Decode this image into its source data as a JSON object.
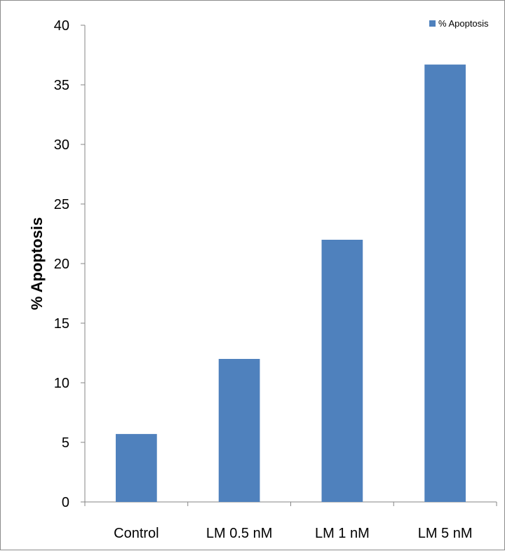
{
  "chart_data": {
    "type": "bar",
    "categories": [
      "Control",
      "LM 0.5 nM",
      "LM 1 nM",
      "LM 5 nM"
    ],
    "series": [
      {
        "name": "% Apoptosis",
        "values": [
          5.7,
          12.0,
          22.0,
          36.7
        ],
        "color": "#4f81bd"
      }
    ],
    "title": "",
    "xlabel": "",
    "ylabel": "% Apoptosis",
    "ylim": [
      0,
      40
    ],
    "yticks": [
      0,
      5,
      10,
      15,
      20,
      25,
      30,
      35,
      40
    ],
    "grid": false,
    "legend": {
      "position": "top-right",
      "entries": [
        "% Apoptosis"
      ]
    }
  }
}
